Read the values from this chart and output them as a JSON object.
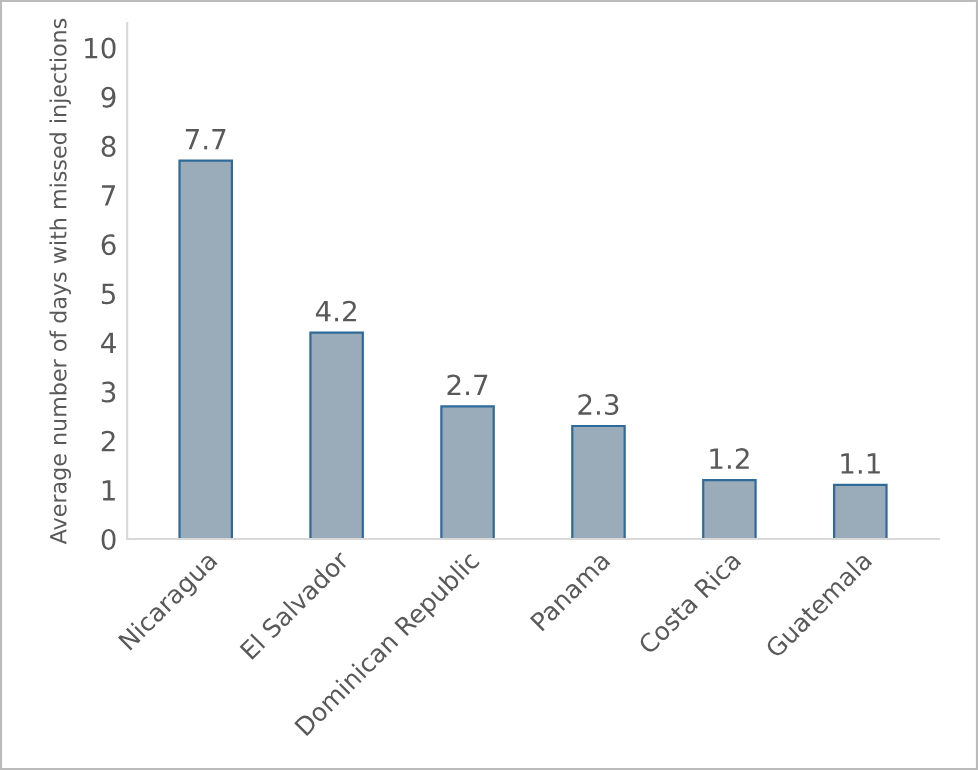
{
  "chart_data": {
    "type": "bar",
    "ylabel": "Average number of days with missed injections",
    "categories": [
      "Nicaragua",
      "El Salvador",
      "Dominican Republic",
      "Panama",
      "Costa Rica",
      "Guatemala"
    ],
    "values": [
      7.7,
      4.2,
      2.7,
      2.3,
      1.2,
      1.1
    ],
    "color": "#9aabba",
    "ylim": [
      0,
      10.5
    ],
    "yticks": [
      0,
      1,
      2,
      3,
      4,
      5,
      6,
      7,
      8,
      9,
      10
    ],
    "grid": false,
    "data_labels": true
  }
}
